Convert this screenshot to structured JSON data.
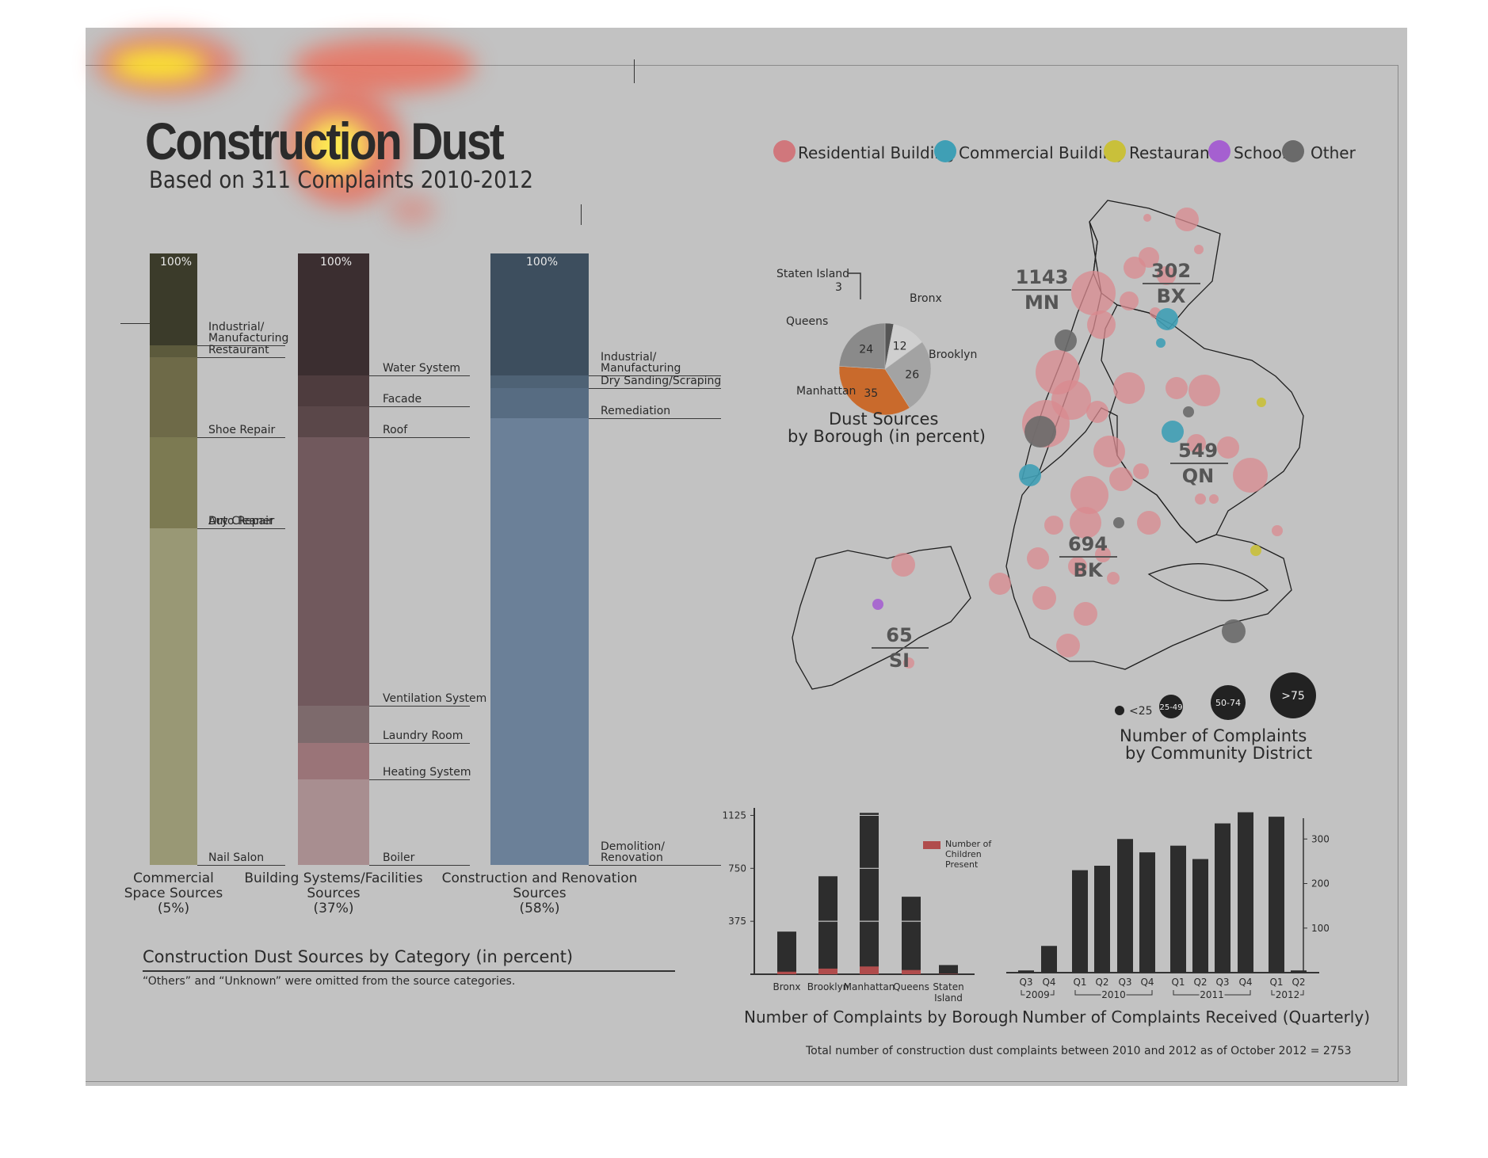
{
  "title": "Construction Dust",
  "subtitle": "Based on 311 Complaints 2010-2012",
  "colors": {
    "residential": "#d98a8f",
    "commercial": "#3f9fb5",
    "restaurant": "#c9c03a",
    "school": "#a560d0",
    "other": "#6a6a6a",
    "manhattan": "#c96a2c"
  },
  "map_legend": [
    {
      "label": "Residential Building",
      "color": "#d0777c"
    },
    {
      "label": "Commercial Building",
      "color": "#3f9fb5"
    },
    {
      "label": "Restaurant",
      "color": "#c9c03a"
    },
    {
      "label": "School",
      "color": "#a560d0"
    },
    {
      "label": "Other",
      "color": "#6a6a6a"
    }
  ],
  "category_section": {
    "caption": "Construction Dust Sources by Category (in percent)",
    "note": "“Others” and “Unknown” were omitted from the source categories.",
    "top_label": "100%",
    "columns": [
      {
        "caption_lines": [
          "Commercial",
          "Space Sources",
          "(5%)"
        ],
        "segments": [
          {
            "label": "Industrial/ Manufacturing",
            "value": 15,
            "color": "#3b3b2a"
          },
          {
            "label": "Restaurant",
            "value": 2,
            "color": "#5c5a3c"
          },
          {
            "label": "Shoe Repair",
            "value": 13,
            "color": "#6e6a48"
          },
          {
            "label": "Dry Cleaner",
            "value": 15,
            "color": "#7c7a52"
          },
          {
            "label": "Auto Repair",
            "value": 0,
            "color": "#7c7a52"
          },
          {
            "label": "Nail Salon",
            "value": 55,
            "color": "#999875"
          }
        ]
      },
      {
        "caption_lines": [
          "Building Systems/Facilities",
          "Sources",
          "(37%)"
        ],
        "segments": [
          {
            "label": "Water System",
            "value": 20,
            "color": "#3b2e30"
          },
          {
            "label": "Facade",
            "value": 5,
            "color": "#4e3c3e"
          },
          {
            "label": "Roof",
            "value": 5,
            "color": "#5a4749"
          },
          {
            "label": "Ventilation System",
            "value": 44,
            "color": "#71595d"
          },
          {
            "label": "Laundry Room",
            "value": 6,
            "color": "#7d6a6c"
          },
          {
            "label": "Heating System",
            "value": 6,
            "color": "#9a7478"
          },
          {
            "label": "Boiler",
            "value": 14,
            "color": "#a88e90"
          }
        ]
      },
      {
        "caption_lines": [
          "Construction and Renovation",
          "Sources",
          "(58%)"
        ],
        "segments": [
          {
            "label": "Industrial/ Manufacturing",
            "value": 20,
            "color": "#3d4e5e"
          },
          {
            "label": "Dry Sanding/Scraping",
            "value": 2,
            "color": "#4e6275"
          },
          {
            "label": "Remediation",
            "value": 5,
            "color": "#576c82"
          },
          {
            "label": "Demolition/ Renovation",
            "value": 73,
            "color": "#6b8098"
          }
        ]
      }
    ]
  },
  "pie_section": {
    "caption_lines": [
      "Dust Sources",
      "by Borough (in percent)"
    ],
    "labels": {
      "staten": "Staten Island",
      "staten_value": "3",
      "bronx": "Bronx",
      "queens": "Queens",
      "brooklyn": "Brooklyn",
      "manhattan": "Manhattan"
    }
  },
  "map_section": {
    "caption_lines": [
      "Number of Complaints",
      "by Community District"
    ],
    "boroughs": [
      {
        "value": "1143",
        "code": "MN"
      },
      {
        "value": "302",
        "code": "BX"
      },
      {
        "value": "549",
        "code": "QN"
      },
      {
        "value": "694",
        "code": "BK"
      },
      {
        "value": "65",
        "code": "SI"
      }
    ],
    "size_legend": [
      "<25",
      "25-49",
      "50-74",
      ">75"
    ]
  },
  "borough_section": {
    "caption": "Number of Complaints by Borough",
    "legend": "Number of Children Present"
  },
  "quarter_section": {
    "caption": "Number of Complaints Received (Quarterly)",
    "years": [
      "2009",
      "2010",
      "2011",
      "2012"
    ]
  },
  "footer": "Total number of construction dust complaints between 2010 and 2012 as of October 2012 = 2753",
  "chart_data": [
    {
      "type": "pie",
      "title": "Dust Sources by Borough (in percent)",
      "categories": [
        "Staten Island",
        "Bronx",
        "Brooklyn",
        "Manhattan",
        "Queens"
      ],
      "values": [
        3,
        12,
        26,
        35,
        24
      ]
    },
    {
      "type": "bar",
      "title": "Number of Complaints by Borough",
      "categories": [
        "Bronx",
        "Brooklyn",
        "Manhattan",
        "Queens",
        "Staten Island"
      ],
      "series": [
        {
          "name": "",
          "values": [
            302,
            694,
            1143,
            549,
            65
          ]
        },
        {
          "name": "Number of Children Present",
          "values": [
            18,
            40,
            55,
            30,
            3
          ]
        }
      ],
      "yticks": [
        375,
        750,
        1125
      ],
      "ylim": [
        0,
        1150
      ]
    },
    {
      "type": "bar",
      "title": "Number of Complaints Received (Quarterly)",
      "categories": [
        "Q3",
        "Q4",
        "Q1",
        "Q2",
        "Q3",
        "Q4",
        "Q1",
        "Q2",
        "Q3",
        "Q4",
        "Q1",
        "Q2"
      ],
      "values": [
        5,
        60,
        230,
        240,
        300,
        270,
        285,
        255,
        335,
        360,
        350,
        5
      ],
      "yticks": [
        100,
        200,
        300
      ],
      "ylim": [
        0,
        400
      ]
    }
  ]
}
